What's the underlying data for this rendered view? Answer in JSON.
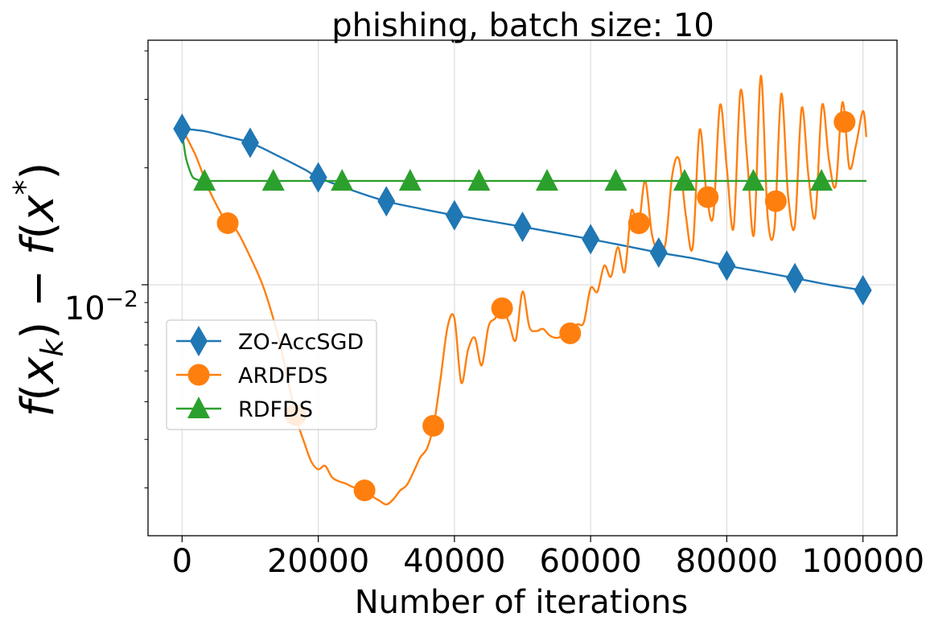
{
  "chart_data": {
    "type": "line",
    "title": "phishing, batch size: 10",
    "xlabel": "Number of iterations",
    "ylabel": "f(x_k) − f(x*)",
    "ylabel_parts": {
      "f1": "f",
      "x1": "x",
      "sub": "k",
      "mid": ") − ",
      "f2": "f",
      "x2": "x",
      "sup": "*"
    },
    "y_scale": "log",
    "xlim": [
      -5000,
      105000
    ],
    "ylim": [
      0.00226,
      0.0426
    ],
    "x_ticks": [
      0,
      20000,
      40000,
      60000,
      80000,
      100000
    ],
    "x_tick_labels": [
      "0",
      "20000",
      "40000",
      "60000",
      "80000",
      "100000"
    ],
    "y_major_ticks": [
      0.01
    ],
    "y_major_tick_base": "10",
    "y_major_tick_exp": "−2",
    "y_minor_ticks": [
      0.003,
      0.004,
      0.005,
      0.006,
      0.007,
      0.008,
      0.009,
      0.02,
      0.03,
      0.04
    ],
    "grid": true,
    "legend_position": "center-left",
    "series": [
      {
        "name": "ZO-AccSGD",
        "color": "#1f77b4",
        "marker": "diamond",
        "x": [
          0,
          3000,
          6000,
          10000,
          14000,
          18000,
          20000,
          25000,
          30000,
          35000,
          40000,
          45000,
          50000,
          55000,
          60000,
          65000,
          70000,
          75000,
          80000,
          85000,
          90000,
          95000,
          100000
        ],
        "y": [
          0.0252,
          0.0249,
          0.0242,
          0.0232,
          0.0215,
          0.0198,
          0.0189,
          0.0175,
          0.0164,
          0.0157,
          0.0151,
          0.0146,
          0.0141,
          0.0136,
          0.0131,
          0.0126,
          0.0121,
          0.0117,
          0.0112,
          0.0108,
          0.0104,
          0.01,
          0.00968
        ],
        "marker_x": [
          0,
          10000,
          20000,
          30000,
          40000,
          50000,
          60000,
          70000,
          80000,
          90000,
          100000
        ]
      },
      {
        "name": "ARDFDS",
        "color": "#ff7f0e",
        "marker": "circle",
        "x": [
          0,
          2000,
          4000,
          6500,
          8000,
          10000,
          12000,
          14000,
          15000,
          16000,
          17000,
          18000,
          19000,
          20000,
          21000,
          22000,
          23000,
          24000,
          25000,
          26000,
          27000,
          28000,
          29000,
          30000,
          31000,
          32000,
          33000,
          34000,
          35000,
          36000,
          37000,
          38000,
          39000,
          40000,
          41000,
          42000,
          43000,
          44000,
          45000,
          46000,
          47000,
          48000,
          49000,
          50000,
          51000,
          52000,
          53000,
          54000,
          55000,
          56000,
          57000,
          58000,
          59000,
          60000,
          61000,
          62000,
          63000,
          64000,
          65000,
          66000,
          67000,
          68000,
          69000,
          70000,
          71000,
          72000,
          73000,
          74000,
          75000,
          76000,
          77000,
          78000,
          79000,
          80000,
          81000,
          82000,
          83000,
          84000,
          85000,
          86000,
          87000,
          88000,
          89000,
          90000,
          91000,
          92000,
          93000,
          94000,
          95000,
          96000,
          97000,
          98000,
          99000,
          100000,
          100500
        ],
        "y": [
          0.0252,
          0.0215,
          0.0175,
          0.0145,
          0.0138,
          0.0118,
          0.0098,
          0.0075,
          0.0063,
          0.0052,
          0.0044,
          0.0039,
          0.0035,
          0.00335,
          0.00342,
          0.0032,
          0.00312,
          0.00308,
          0.00302,
          0.00298,
          0.00295,
          0.00285,
          0.00278,
          0.00272,
          0.0028,
          0.00295,
          0.00305,
          0.0033,
          0.0036,
          0.0038,
          0.0044,
          0.0058,
          0.0078,
          0.0082,
          0.0056,
          0.0068,
          0.0073,
          0.0062,
          0.0078,
          0.0082,
          0.0087,
          0.008,
          0.0072,
          0.0096,
          0.0078,
          0.0076,
          0.0077,
          0.0074,
          0.0073,
          0.0074,
          0.0075,
          0.0079,
          0.008,
          0.0098,
          0.0096,
          0.0112,
          0.0105,
          0.0125,
          0.0108,
          0.0155,
          0.014,
          0.0185,
          0.0135,
          0.0122,
          0.0128,
          0.0192,
          0.021,
          0.015,
          0.0125,
          0.025,
          0.0173,
          0.015,
          0.029,
          0.02,
          0.014,
          0.0315,
          0.021,
          0.0135,
          0.0345,
          0.015,
          0.014,
          0.031,
          0.017,
          0.0142,
          0.0285,
          0.019,
          0.015,
          0.029,
          0.021,
          0.018,
          0.0295,
          0.02,
          0.023,
          0.028,
          0.024
        ],
        "marker_x": [
          6700,
          16700,
          26800,
          36900,
          47000,
          57000,
          67100,
          77200,
          87200,
          97300
        ]
      },
      {
        "name": "RDFDS",
        "color": "#2ca02c",
        "marker": "triangle",
        "x": [
          0,
          500,
          1000,
          1500,
          2000,
          3000,
          5000,
          10000,
          20000,
          30000,
          40000,
          50000,
          60000,
          70000,
          80000,
          90000,
          100500
        ],
        "y": [
          0.0248,
          0.0215,
          0.02,
          0.019,
          0.0187,
          0.0185,
          0.0185,
          0.0185,
          0.0185,
          0.0185,
          0.0185,
          0.0185,
          0.0185,
          0.0185,
          0.0185,
          0.0185,
          0.0185
        ],
        "marker_x": [
          3300,
          13400,
          23500,
          33500,
          43600,
          53600,
          63700,
          73800,
          83900,
          93900
        ]
      }
    ]
  }
}
